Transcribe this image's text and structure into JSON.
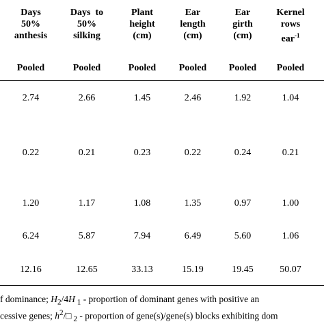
{
  "table": {
    "columns": [
      {
        "header": [
          "Days",
          "50%",
          "anthesis"
        ],
        "subheader": "Pooled"
      },
      {
        "header": [
          "Days  to",
          "50%",
          "silking"
        ],
        "subheader": "Pooled"
      },
      {
        "header": [
          "Plant",
          "height",
          "(cm)"
        ],
        "subheader": "Pooled"
      },
      {
        "header": [
          "Ear",
          "length",
          "(cm)"
        ],
        "subheader": "Pooled"
      },
      {
        "header": [
          "Ear",
          "girth",
          "(cm)"
        ],
        "subheader": "Pooled"
      },
      {
        "header": [
          "Kernel",
          "rows",
          {
            "text": "ear",
            "sup": "-1"
          }
        ],
        "subheader": "Pooled"
      }
    ],
    "rows": [
      [
        "2.74",
        "2.66",
        "1.45",
        "2.46",
        "1.92",
        "1.04"
      ],
      [
        "0.22",
        "0.21",
        "0.23",
        "0.22",
        "0.24",
        "0.21"
      ],
      [
        "1.20",
        "1.17",
        "1.08",
        "1.35",
        "0.97",
        "1.00"
      ],
      [
        "6.24",
        "5.87",
        "7.94",
        "6.49",
        "5.60",
        "1.06"
      ],
      [
        "12.16",
        "12.65",
        "33.13",
        "15.19",
        "19.45",
        "50.07"
      ]
    ]
  },
  "footnotes": [
    [
      "f dominance; ",
      "H",
      "2",
      "/4",
      "H",
      " 1",
      " - proportion of dominant genes with positive an"
    ],
    [
      "cessive genes; ",
      "h",
      "2",
      "/",
      "□",
      " 2",
      " - proportion of gene(s)/gene(s) blocks exhibiting dom"
    ]
  ]
}
